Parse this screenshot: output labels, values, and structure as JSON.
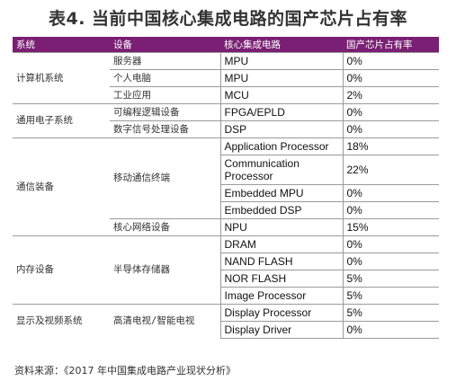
{
  "title": "表4. 当前中国核心集成电路的国产芯片占有率",
  "header": {
    "system": "系统",
    "device": "设备",
    "circuit": "核心集成电路",
    "share": "国产芯片占有率"
  },
  "groups": [
    {
      "system": "计算机系统",
      "devices": [
        {
          "name": "服务器",
          "circuits": [
            {
              "name": "MPU",
              "share": "0%"
            }
          ]
        },
        {
          "name": "个人电脑",
          "circuits": [
            {
              "name": "MPU",
              "share": "0%"
            }
          ]
        },
        {
          "name": "工业应用",
          "circuits": [
            {
              "name": "MCU",
              "share": "2%"
            }
          ]
        }
      ]
    },
    {
      "system": "通用电子系统",
      "devices": [
        {
          "name": "可编程逻辑设备",
          "circuits": [
            {
              "name": "FPGA/EPLD",
              "share": "0%"
            }
          ]
        },
        {
          "name": "数字信号处理设备",
          "circuits": [
            {
              "name": "DSP",
              "share": "0%"
            }
          ]
        }
      ]
    },
    {
      "system": "通信装备",
      "devices": [
        {
          "name": "移动通信终端",
          "circuits": [
            {
              "name": "Application Processor",
              "share": "18%"
            },
            {
              "name": "Communication Processor",
              "share": "22%"
            },
            {
              "name": "Embedded MPU",
              "share": "0%"
            },
            {
              "name": "Embedded DSP",
              "share": "0%"
            }
          ]
        },
        {
          "name": "核心网络设备",
          "circuits": [
            {
              "name": "NPU",
              "share": "15%"
            }
          ]
        }
      ]
    },
    {
      "system": "内存设备",
      "devices": [
        {
          "name": "半导体存储器",
          "circuits": [
            {
              "name": "DRAM",
              "share": "0%"
            },
            {
              "name": "NAND FLASH",
              "share": "0%"
            },
            {
              "name": "NOR FLASH",
              "share": "5%"
            },
            {
              "name": "Image Processor",
              "share": "5%"
            }
          ]
        }
      ]
    },
    {
      "system": "显示及视频系统",
      "devices": [
        {
          "name": "高清电视/智能电视",
          "circuits": [
            {
              "name": "Display Processor",
              "share": "5%"
            },
            {
              "name": "Display Driver",
              "share": "0%"
            }
          ]
        }
      ]
    }
  ],
  "source": "资料来源：《2017 年中国集成电路产业现状分析》",
  "colors": {
    "header_bg": "#7a1f73",
    "header_text": "#ffffff",
    "rule": "#9a9a9a"
  }
}
